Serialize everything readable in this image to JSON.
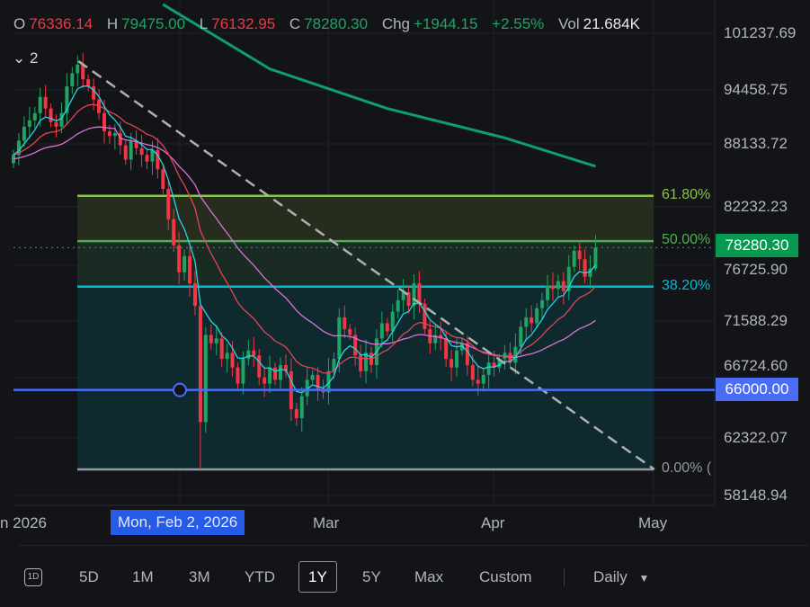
{
  "legend": {
    "open_label": "O",
    "open": "76336.14",
    "high_label": "H",
    "high": "79475.00",
    "low_label": "L",
    "low": "76132.95",
    "close_label": "C",
    "close": "78280.30",
    "chg_label": "Chg",
    "chg": "+1944.15",
    "chg_pct": "+2.55%",
    "vol_label": "Vol",
    "vol": "21.684K",
    "collapse_count": "2"
  },
  "price_axis": [
    "101237.69",
    "94458.75",
    "88133.72",
    "82232.23",
    "76725.90",
    "71588.29",
    "66724.60",
    "62322.07",
    "58148.94"
  ],
  "current_price_tag": "78280.30",
  "alert_line_tag": "66000.00",
  "fib_levels": [
    {
      "label": "61.80%",
      "price": 83300,
      "color": "#8bc34a"
    },
    {
      "label": "50.00%",
      "price": 78900,
      "color": "#4caf50"
    },
    {
      "label": "38.20%",
      "price": 74700,
      "color": "#00bcd4"
    },
    {
      "label": "0.00% (",
      "price": 60000,
      "color": "#9598a1"
    }
  ],
  "time_axis": [
    "n 2026",
    "Mar",
    "Apr",
    "May"
  ],
  "crosshair_date": "Mon, Feb 2, 2026",
  "toolbar": {
    "icon_label": "1D",
    "ranges": [
      "5D",
      "1M",
      "3M",
      "YTD",
      "1Y",
      "5Y",
      "Max",
      "Custom"
    ],
    "active_range": "1Y",
    "interval": "Daily"
  },
  "colors": {
    "up": "#1fa463",
    "down": "#f23645",
    "ma_fast": "#29d3e6",
    "ma_mid": "#e0455a",
    "ma_slow": "#e070d8",
    "ma_long": "#0e9f6e",
    "alert": "#4a6cf7",
    "trendline": "#b0b0b0"
  },
  "chart_data": {
    "type": "candlestick",
    "scale": "log",
    "ylim": [
      58148.94,
      101237.69
    ],
    "closes": [
      87500,
      89000,
      90500,
      91200,
      92000,
      93800,
      92500,
      91000,
      90500,
      92000,
      95000,
      96500,
      97500,
      95800,
      95000,
      93500,
      92000,
      90000,
      89500,
      89800,
      88500,
      87000,
      89000,
      88200,
      87500,
      86800,
      88000,
      86000,
      84000,
      81000,
      78500,
      76000,
      77500,
      75000,
      73000,
      63500,
      70500,
      69800,
      70200,
      68500,
      69000,
      67800,
      66500,
      68500,
      69200,
      68800,
      67000,
      66500,
      67800,
      66800,
      68000,
      67500,
      64500,
      63800,
      65500,
      66800,
      67200,
      66000,
      65800,
      67500,
      68500,
      72000,
      71000,
      70500,
      68800,
      67500,
      69000,
      68000,
      70200,
      71500,
      70800,
      72500,
      73500,
      74200,
      73000,
      75000,
      73200,
      71000,
      69800,
      70500,
      70200,
      68500,
      67800,
      69200,
      69800,
      68000,
      66800,
      66500,
      67200,
      68200,
      67800,
      68500,
      69000,
      68200,
      69500,
      71200,
      72000,
      71500,
      72800,
      73500,
      74800,
      74500,
      75200,
      74300,
      76500,
      78000,
      77200,
      75600,
      76336.14,
      78280.3
    ],
    "last_candle": {
      "open": 76336.14,
      "high": 79475.0,
      "low": 76132.95,
      "close": 78280.3
    },
    "long_ma_points": [
      [
        28,
        104800
      ],
      [
        48,
        97000
      ],
      [
        70,
        92500
      ],
      [
        92,
        89300
      ],
      [
        109,
        86300
      ]
    ],
    "trendline": [
      [
        12,
        97900
      ],
      [
        120,
        60000
      ]
    ],
    "alert_price": 66000
  }
}
